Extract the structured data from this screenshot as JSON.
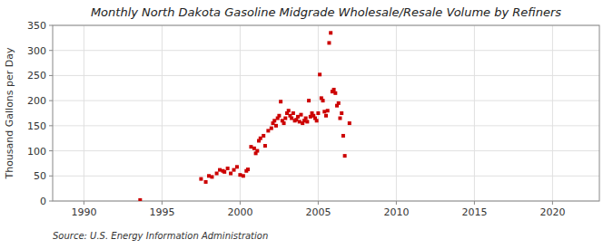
{
  "chart_data": {
    "type": "scatter",
    "title": "Monthly North Dakota Gasoline Midgrade Wholesale/Resale Volume by Refiners",
    "ylabel": "Thousand Gallons per Day",
    "source": "Source: U.S. Energy Information Administration",
    "color": "#cc0000",
    "marker": "square",
    "grid": true,
    "xlim": [
      1988,
      2023
    ],
    "ylim": [
      0,
      350
    ],
    "xticks": [
      1990,
      1995,
      2000,
      2005,
      2010,
      2015,
      2020
    ],
    "yticks": [
      0,
      50,
      100,
      150,
      200,
      250,
      300,
      350
    ],
    "x": [
      1993.6,
      1997.5,
      1997.8,
      1998.0,
      1998.2,
      1998.5,
      1998.7,
      1998.9,
      1999.0,
      1999.2,
      1999.4,
      1999.6,
      1999.8,
      2000.0,
      2000.2,
      2000.4,
      2000.5,
      2000.7,
      2000.9,
      2001.0,
      2001.1,
      2001.2,
      2001.3,
      2001.5,
      2001.6,
      2001.8,
      2002.0,
      2002.1,
      2002.2,
      2002.3,
      2002.4,
      2002.5,
      2002.6,
      2002.7,
      2002.8,
      2002.9,
      2003.0,
      2003.1,
      2003.2,
      2003.3,
      2003.4,
      2003.5,
      2003.6,
      2003.7,
      2003.8,
      2003.9,
      2004.0,
      2004.1,
      2004.2,
      2004.3,
      2004.4,
      2004.5,
      2004.6,
      2004.7,
      2004.8,
      2004.9,
      2005.0,
      2005.1,
      2005.2,
      2005.3,
      2005.4,
      2005.5,
      2005.6,
      2005.7,
      2005.8,
      2005.9,
      2006.0,
      2006.1,
      2006.2,
      2006.3,
      2006.4,
      2006.5,
      2006.6,
      2006.7,
      2007.0
    ],
    "values": [
      2,
      44,
      38,
      50,
      48,
      55,
      62,
      60,
      58,
      65,
      55,
      62,
      68,
      52,
      50,
      60,
      63,
      108,
      105,
      95,
      100,
      120,
      125,
      130,
      110,
      140,
      145,
      155,
      160,
      150,
      165,
      170,
      198,
      160,
      155,
      165,
      175,
      180,
      170,
      165,
      175,
      160,
      162,
      168,
      158,
      172,
      155,
      160,
      165,
      158,
      200,
      168,
      175,
      170,
      165,
      160,
      175,
      252,
      205,
      200,
      178,
      170,
      180,
      315,
      335,
      218,
      222,
      215,
      190,
      195,
      165,
      175,
      130,
      90,
      155
    ]
  }
}
